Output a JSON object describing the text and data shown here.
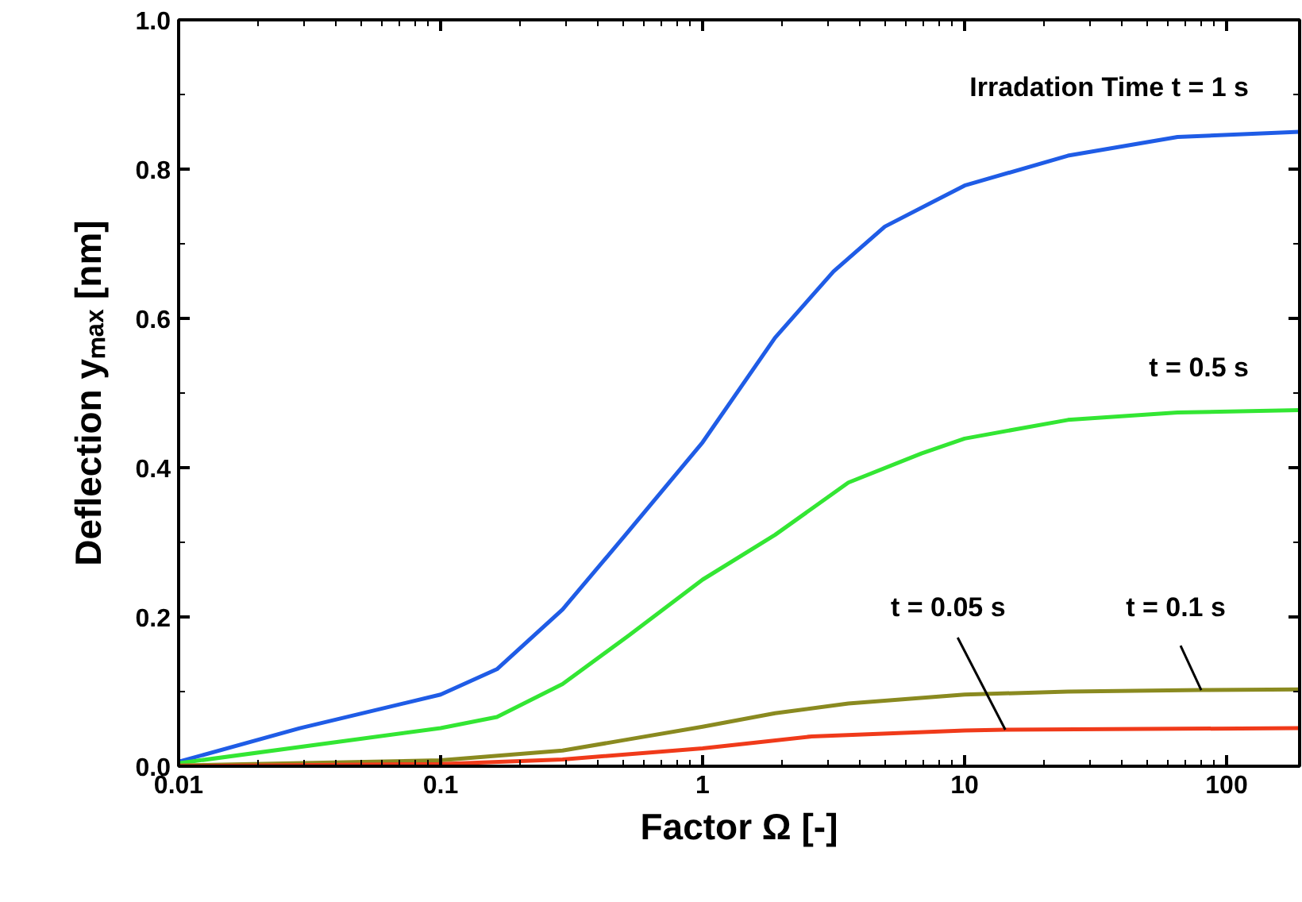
{
  "chart_data": {
    "type": "line",
    "log": "x",
    "line_style": "solid",
    "xlabel": "Factor Ω [-]",
    "ylabel": "Deflection yₘₐₓ [nm]",
    "xlim": [
      0.01,
      190
    ],
    "ylim": [
      0,
      1.0
    ],
    "xticks": [
      0.01,
      0.1,
      1,
      10,
      100
    ],
    "yticks": [
      {
        "value": 0,
        "label": "0.0"
      },
      0.2,
      0.4,
      0.6,
      0.8,
      {
        "value": 1.0,
        "label": "1.0"
      }
    ],
    "series": [
      {
        "name": "Irradation Time t = 1 s",
        "color": "#1f5ce6",
        "x": [
          0.01,
          0.029,
          0.1,
          0.164,
          0.292,
          0.522,
          1,
          1.89,
          3.16,
          4.96,
          10,
          24.8,
          65,
          190
        ],
        "values": [
          0.006,
          0.051,
          0.096,
          0.13,
          0.21,
          0.315,
          0.434,
          0.574,
          0.663,
          0.723,
          0.778,
          0.818,
          0.843,
          0.85
        ]
      },
      {
        "name": "t = 0.5 s",
        "color": "#33e633",
        "x": [
          0.01,
          0.1,
          0.164,
          0.292,
          0.522,
          1,
          1.89,
          3.6,
          6.84,
          10,
          24.8,
          65,
          190
        ],
        "values": [
          0.004,
          0.051,
          0.066,
          0.11,
          0.175,
          0.25,
          0.31,
          0.38,
          0.419,
          0.439,
          0.464,
          0.474,
          0.477
        ]
      },
      {
        "name": "t = 0.1 s",
        "color": "#8a8a20",
        "x": [
          0.01,
          0.1,
          0.292,
          0.522,
          1,
          1.89,
          3.6,
          10,
          24.8,
          80,
          190
        ],
        "values": [
          0.001,
          0.008,
          0.021,
          0.036,
          0.053,
          0.071,
          0.084,
          0.096,
          0.1,
          0.102,
          0.103
        ]
      },
      {
        "name": "t = 0.05 s",
        "color": "#f03a1a",
        "x": [
          0.01,
          0.1,
          0.292,
          1,
          2.61,
          10,
          14.3,
          190
        ],
        "values": [
          0,
          0.003,
          0.009,
          0.024,
          0.04,
          0.048,
          0.049,
          0.051
        ]
      }
    ]
  }
}
